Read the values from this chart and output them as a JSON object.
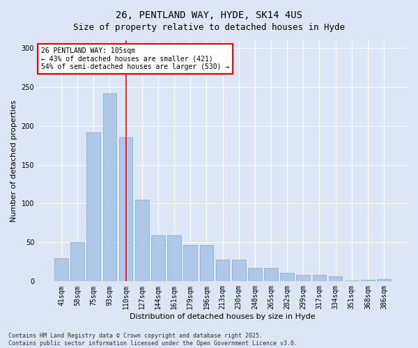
{
  "title_line1": "26, PENTLAND WAY, HYDE, SK14 4US",
  "title_line2": "Size of property relative to detached houses in Hyde",
  "xlabel": "Distribution of detached houses by size in Hyde",
  "ylabel": "Number of detached properties",
  "categories": [
    "41sqm",
    "58sqm",
    "75sqm",
    "93sqm",
    "110sqm",
    "127sqm",
    "144sqm",
    "161sqm",
    "179sqm",
    "196sqm",
    "213sqm",
    "230sqm",
    "248sqm",
    "265sqm",
    "282sqm",
    "299sqm",
    "317sqm",
    "334sqm",
    "351sqm",
    "368sqm",
    "386sqm"
  ],
  "values": [
    30,
    50,
    192,
    242,
    185,
    105,
    59,
    59,
    47,
    47,
    28,
    28,
    17,
    17,
    11,
    8,
    8,
    7,
    1,
    2,
    3
  ],
  "bar_color": "#aec6e8",
  "bar_edge_color": "#7aafd4",
  "background_color": "#dce6f5",
  "grid_color": "#ffffff",
  "vline_x": 4,
  "vline_color": "red",
  "annotation_text": "26 PENTLAND WAY: 105sqm\n← 43% of detached houses are smaller (421)\n54% of semi-detached houses are larger (530) →",
  "annotation_box_color": "white",
  "annotation_box_edge_color": "red",
  "ylim": [
    0,
    310
  ],
  "yticks": [
    0,
    50,
    100,
    150,
    200,
    250,
    300
  ],
  "footer_line1": "Contains HM Land Registry data © Crown copyright and database right 2025.",
  "footer_line2": "Contains public sector information licensed under the Open Government Licence v3.0.",
  "title_fontsize": 10,
  "subtitle_fontsize": 9,
  "axis_label_fontsize": 8,
  "tick_fontsize": 7,
  "annotation_fontsize": 7,
  "footer_fontsize": 6
}
